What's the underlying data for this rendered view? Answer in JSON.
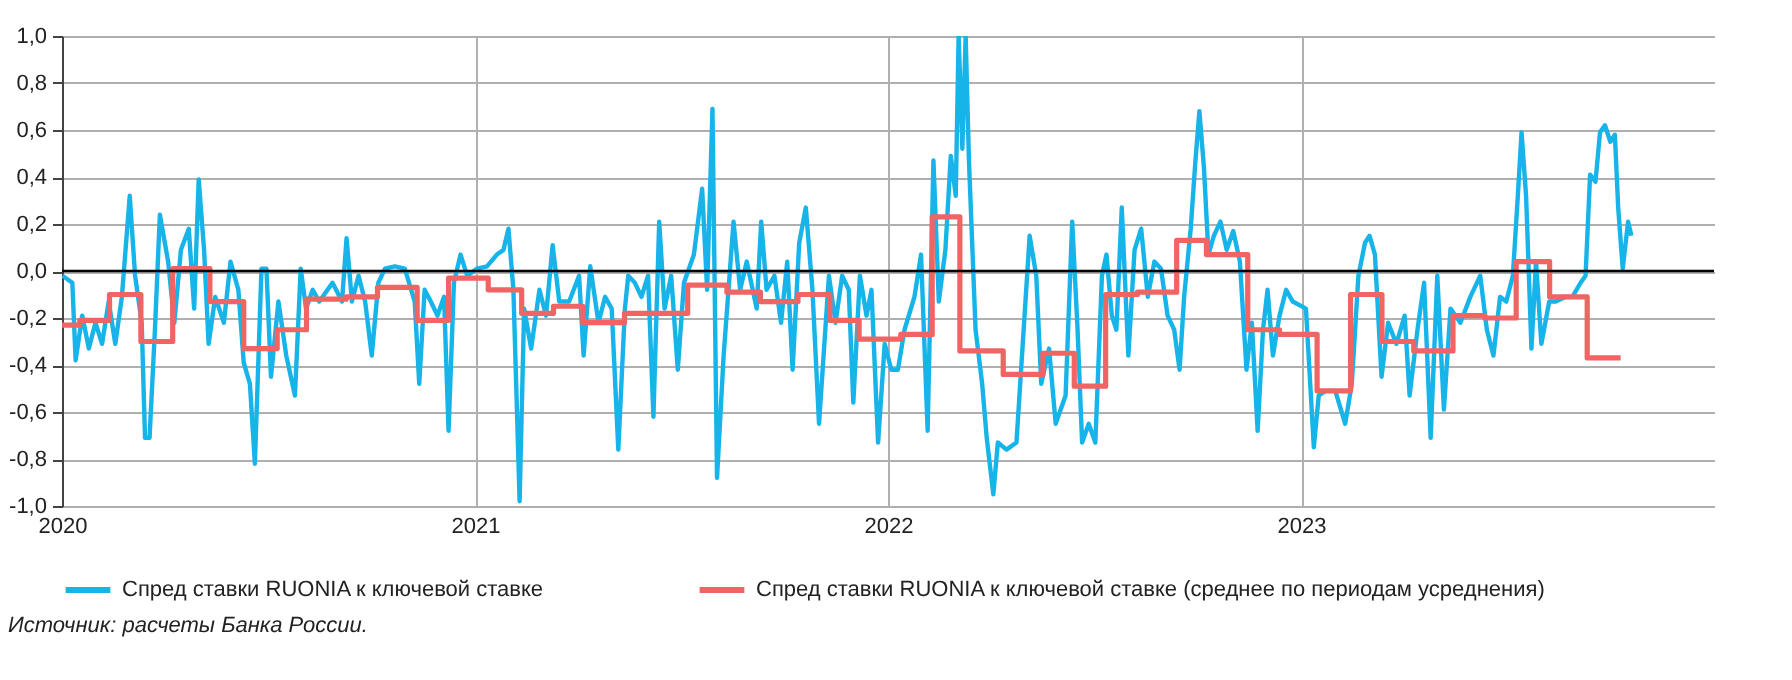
{
  "chart_data": {
    "type": "line",
    "xlim": [
      2020,
      2024
    ],
    "xticks": [
      2020,
      2021,
      2022,
      2023
    ],
    "ylim": [
      -1,
      1
    ],
    "yticks": [
      {
        "value": -1,
        "label": "-1,0"
      },
      {
        "value": -0.8,
        "label": "-0,8"
      },
      {
        "value": -0.6,
        "label": "-0,6"
      },
      {
        "value": -0.4,
        "label": "-0,4"
      },
      {
        "value": -0.2,
        "label": "-0,2"
      },
      {
        "value": 0,
        "label": "0,0"
      },
      {
        "value": 0.2,
        "label": "0,2"
      },
      {
        "value": 0.4,
        "label": "0,4"
      },
      {
        "value": 0.6,
        "label": "0,6"
      },
      {
        "value": 0.8,
        "label": "0,8"
      },
      {
        "value": 1,
        "label": "1,0"
      }
    ],
    "grid": true,
    "legend": "bottom",
    "ref_lines": [
      {
        "axis": "y",
        "value": 0,
        "color": "#000000"
      }
    ],
    "annotations": [
      "Источник: расчеты Банка России."
    ],
    "series": [
      {
        "name": "Спред ставки RUONIA к ключевой ставке",
        "color": "#17b4ea",
        "type": "line",
        "x": [
          2020.001,
          2020.025,
          2020.033,
          2020.049,
          2020.065,
          2020.081,
          2020.097,
          2020.113,
          2020.129,
          2020.145,
          2020.164,
          2020.177,
          2020.193,
          2020.201,
          2020.212,
          2020.225,
          2020.237,
          2020.257,
          2020.272,
          2020.288,
          2020.307,
          2020.32,
          2020.331,
          2020.344,
          2020.355,
          2020.371,
          2020.392,
          2020.408,
          2020.427,
          2020.44,
          2020.455,
          2020.467,
          2020.483,
          2020.495,
          2020.506,
          2020.524,
          2020.543,
          2020.564,
          2020.578,
          2020.591,
          2020.607,
          2020.623,
          2020.655,
          2020.678,
          2020.689,
          2020.702,
          2020.718,
          2020.734,
          2020.75,
          2020.766,
          2020.782,
          2020.806,
          2020.83,
          2020.854,
          2020.865,
          2020.878,
          2020.893,
          2020.909,
          2020.925,
          2020.936,
          2020.949,
          2020.965,
          2020.981,
          2021.005,
          2021.029,
          2021.053,
          2021.069,
          2021.081,
          2021.093,
          2021.108,
          2021.119,
          2021.136,
          2021.156,
          2021.172,
          2021.188,
          2021.204,
          2021.228,
          2021.252,
          2021.263,
          2021.279,
          2021.299,
          2021.315,
          2021.331,
          2021.347,
          2021.363,
          2021.371,
          2021.387,
          2021.403,
          2021.419,
          2021.432,
          2021.446,
          2021.459,
          2021.475,
          2021.491,
          2021.506,
          2021.53,
          2021.55,
          2021.562,
          2021.575,
          2021.586,
          2021.602,
          2021.626,
          2021.642,
          2021.658,
          2021.682,
          2021.693,
          2021.706,
          2021.725,
          2021.741,
          2021.756,
          2021.769,
          2021.785,
          2021.801,
          2021.817,
          2021.833,
          2021.857,
          2021.873,
          2021.889,
          2021.905,
          2021.916,
          2021.932,
          2021.948,
          2021.96,
          2021.976,
          2021.992,
          2022.008,
          2022.024,
          2022.04,
          2022.064,
          2022.08,
          2022.096,
          2022.11,
          2022.123,
          2022.139,
          2022.152,
          2022.164,
          2022.171,
          2022.18,
          2022.188,
          2022.196,
          2022.212,
          2022.228,
          2022.239,
          2022.255,
          2022.266,
          2022.287,
          2022.311,
          2022.343,
          2022.359,
          2022.371,
          2022.39,
          2022.406,
          2022.43,
          2022.446,
          2022.459,
          2022.47,
          2022.486,
          2022.502,
          2022.518,
          2022.529,
          2022.542,
          2022.553,
          2022.566,
          2022.582,
          2022.597,
          2022.613,
          2022.629,
          2022.645,
          2022.661,
          2022.677,
          2022.693,
          2022.706,
          2022.717,
          2022.733,
          2022.744,
          2022.754,
          2022.765,
          2022.776,
          2022.789,
          2022.805,
          2022.82,
          2022.836,
          2022.852,
          2022.868,
          2022.881,
          2022.895,
          2022.908,
          2022.919,
          2022.932,
          2022.948,
          2022.964,
          2022.98,
          2023.012,
          2023.031,
          2023.043,
          2023.059,
          2023.083,
          2023.107,
          2023.123,
          2023.139,
          2023.155,
          2023.166,
          2023.179,
          2023.195,
          2023.211,
          2023.231,
          2023.251,
          2023.263,
          2023.282,
          2023.298,
          2023.314,
          2023.33,
          2023.346,
          2023.362,
          2023.386,
          2023.41,
          2023.434,
          2023.45,
          2023.466,
          2023.482,
          2023.497,
          2023.513,
          2023.525,
          2023.534,
          2023.545,
          2023.558,
          2023.569,
          2023.582,
          2023.601,
          2023.617,
          2023.641,
          2023.657,
          2023.677,
          2023.689,
          2023.7,
          2023.713,
          2023.724,
          2023.736,
          2023.749,
          2023.76,
          2023.768,
          2023.779,
          2023.792,
          2023.8
        ],
        "values": [
          -0.02,
          -0.05,
          -0.38,
          -0.19,
          -0.33,
          -0.22,
          -0.31,
          -0.13,
          -0.31,
          -0.11,
          0.32,
          -0.02,
          -0.22,
          -0.71,
          -0.71,
          -0.25,
          0.24,
          0.04,
          -0.22,
          0.09,
          0.18,
          -0.16,
          0.39,
          0.09,
          -0.31,
          -0.11,
          -0.22,
          0.04,
          -0.08,
          -0.39,
          -0.48,
          -0.82,
          0.01,
          0.01,
          -0.45,
          -0.13,
          -0.36,
          -0.53,
          0.01,
          -0.16,
          -0.08,
          -0.13,
          -0.05,
          -0.13,
          0.14,
          -0.13,
          -0.02,
          -0.13,
          -0.36,
          -0.05,
          0.01,
          0.02,
          0.01,
          -0.13,
          -0.48,
          -0.08,
          -0.13,
          -0.19,
          -0.11,
          -0.68,
          -0.05,
          0.07,
          -0.02,
          0.01,
          0.02,
          0.07,
          0.09,
          0.18,
          -0.08,
          -0.98,
          -0.16,
          -0.33,
          -0.08,
          -0.19,
          0.11,
          -0.13,
          -0.13,
          -0.02,
          -0.36,
          0.02,
          -0.22,
          -0.11,
          -0.16,
          -0.76,
          -0.16,
          -0.02,
          -0.05,
          -0.11,
          -0.02,
          -0.62,
          0.21,
          -0.16,
          -0.02,
          -0.42,
          -0.05,
          0.07,
          0.35,
          -0.08,
          0.69,
          -0.88,
          -0.36,
          0.21,
          -0.08,
          0.04,
          -0.16,
          0.21,
          -0.08,
          -0.02,
          -0.22,
          0.04,
          -0.42,
          0.12,
          0.27,
          -0.08,
          -0.65,
          -0.02,
          -0.22,
          -0.02,
          -0.08,
          -0.56,
          -0.02,
          -0.19,
          -0.08,
          -0.73,
          -0.31,
          -0.42,
          -0.42,
          -0.25,
          -0.11,
          0.07,
          -0.68,
          0.47,
          -0.13,
          0.09,
          0.49,
          0.32,
          1.0,
          0.52,
          1.0,
          0.47,
          -0.25,
          -0.48,
          -0.71,
          -0.95,
          -0.73,
          -0.76,
          -0.73,
          0.15,
          -0.02,
          -0.48,
          -0.33,
          -0.65,
          -0.53,
          0.21,
          -0.25,
          -0.73,
          -0.65,
          -0.73,
          -0.02,
          0.07,
          -0.19,
          -0.25,
          0.27,
          -0.36,
          0.09,
          0.18,
          -0.11,
          0.04,
          0.01,
          -0.19,
          -0.25,
          -0.42,
          -0.11,
          0.18,
          0.46,
          0.68,
          0.44,
          0.07,
          0.15,
          0.21,
          0.09,
          0.17,
          0.04,
          -0.42,
          -0.22,
          -0.68,
          -0.25,
          -0.08,
          -0.36,
          -0.19,
          -0.08,
          -0.13,
          -0.16,
          -0.75,
          -0.53,
          -0.51,
          -0.51,
          -0.65,
          -0.48,
          -0.02,
          0.12,
          0.15,
          0.07,
          -0.45,
          -0.22,
          -0.31,
          -0.19,
          -0.53,
          -0.25,
          -0.05,
          -0.71,
          -0.02,
          -0.59,
          -0.16,
          -0.22,
          -0.11,
          -0.02,
          -0.25,
          -0.36,
          -0.11,
          -0.13,
          -0.02,
          0.32,
          0.59,
          0.32,
          -0.33,
          0.04,
          -0.31,
          -0.13,
          -0.13,
          -0.11,
          -0.11,
          -0.05,
          -0.02,
          0.41,
          0.38,
          0.59,
          0.62,
          0.55,
          0.58,
          0.27,
          0.01,
          0.21,
          0.15
        ]
      },
      {
        "name": "Спред ставки RUONIA к ключевой ставке (среднее по периодам усреднения)",
        "color": "#f06464",
        "type": "step",
        "x": [
          2020.0,
          2020.043,
          2020.115,
          2020.191,
          2020.268,
          2020.358,
          2020.44,
          2020.521,
          2020.592,
          2020.688,
          2020.764,
          2020.86,
          2020.936,
          2021.032,
          2021.113,
          2021.19,
          2021.261,
          2021.362,
          2021.515,
          2021.61,
          2021.691,
          2021.782,
          2021.859,
          2021.93,
          2022.031,
          2022.107,
          2022.174,
          2022.279,
          2022.375,
          2022.451,
          2022.527,
          2022.604,
          2022.699,
          2022.771,
          2022.871,
          2022.948,
          2023.039,
          2023.12,
          2023.196,
          2023.273,
          2023.368,
          2023.445,
          2023.521,
          2023.602,
          2023.693,
          2023.774
        ],
        "values": [
          -0.23,
          -0.21,
          -0.1,
          -0.3,
          0.01,
          -0.13,
          -0.33,
          -0.25,
          -0.12,
          -0.11,
          -0.07,
          -0.21,
          -0.03,
          -0.08,
          -0.18,
          -0.15,
          -0.22,
          -0.18,
          -0.06,
          -0.09,
          -0.13,
          -0.1,
          -0.21,
          -0.29,
          -0.27,
          0.23,
          -0.34,
          -0.44,
          -0.35,
          -0.49,
          -0.1,
          -0.09,
          0.13,
          0.07,
          -0.25,
          -0.27,
          -0.51,
          -0.1,
          -0.3,
          -0.34,
          -0.19,
          -0.2,
          0.04,
          -0.11,
          -0.37,
          -0.37
        ]
      }
    ]
  }
}
